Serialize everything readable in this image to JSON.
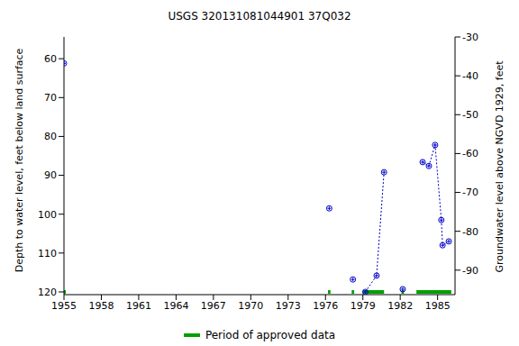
{
  "chart_data": {
    "type": "line",
    "title": "USGS 320131081044901 37Q032",
    "ylabel": "Depth to water level, feet below land surface",
    "y2label": "Groundwater level above NGVD 1929, feet",
    "xlim": [
      1955,
      1986.4
    ],
    "xticks": [
      1955,
      1958,
      1961,
      1964,
      1967,
      1970,
      1973,
      1976,
      1979,
      1982,
      1985
    ],
    "ylim": [
      54.4,
      120.7
    ],
    "yticks": [
      60,
      70,
      80,
      90,
      100,
      110,
      120
    ],
    "y2lim": [
      -96.3,
      -30
    ],
    "y2ticks": [
      -30,
      -40,
      -50,
      -60,
      -70,
      -80,
      -90
    ],
    "grid": false,
    "legend": "bottom",
    "series": [
      {
        "color": "#0000cc",
        "marker": "circle",
        "line_style": "dotted",
        "x": [
          1955.0
        ],
        "values": [
          61.2
        ]
      },
      {
        "color": "#0000cc",
        "marker": "circle",
        "line_style": "dotted",
        "x": [
          1976.3
        ],
        "values": [
          98.5
        ]
      },
      {
        "color": "#0000cc",
        "marker": "circle",
        "line_style": "dotted",
        "x": [
          1978.2
        ],
        "values": [
          116.8
        ]
      },
      {
        "color": "#0000cc",
        "marker": "circle",
        "line_style": "dotted",
        "x": [
          1979.2,
          1980.1,
          1980.7
        ],
        "values": [
          120.0,
          115.8,
          89.2
        ]
      },
      {
        "color": "#0000cc",
        "marker": "circle",
        "line_style": "dotted",
        "x": [
          1982.2
        ],
        "values": [
          119.3
        ]
      },
      {
        "color": "#0000cc",
        "marker": "circle",
        "line_style": "dotted",
        "x": [
          1983.8,
          1984.3,
          1984.8,
          1985.3,
          1985.4,
          1985.9
        ],
        "values": [
          86.6,
          87.6,
          82.2,
          101.5,
          108.0,
          107.0
        ]
      }
    ],
    "approved_periods": [
      [
        1955.0,
        1955.15
      ],
      [
        1976.2,
        1976.4
      ],
      [
        1978.1,
        1978.3
      ],
      [
        1979.0,
        1980.7
      ],
      [
        1982.1,
        1982.3
      ],
      [
        1983.3,
        1986.1
      ]
    ],
    "approved_label": "Period of approved data",
    "approved_color": "#00a000"
  }
}
